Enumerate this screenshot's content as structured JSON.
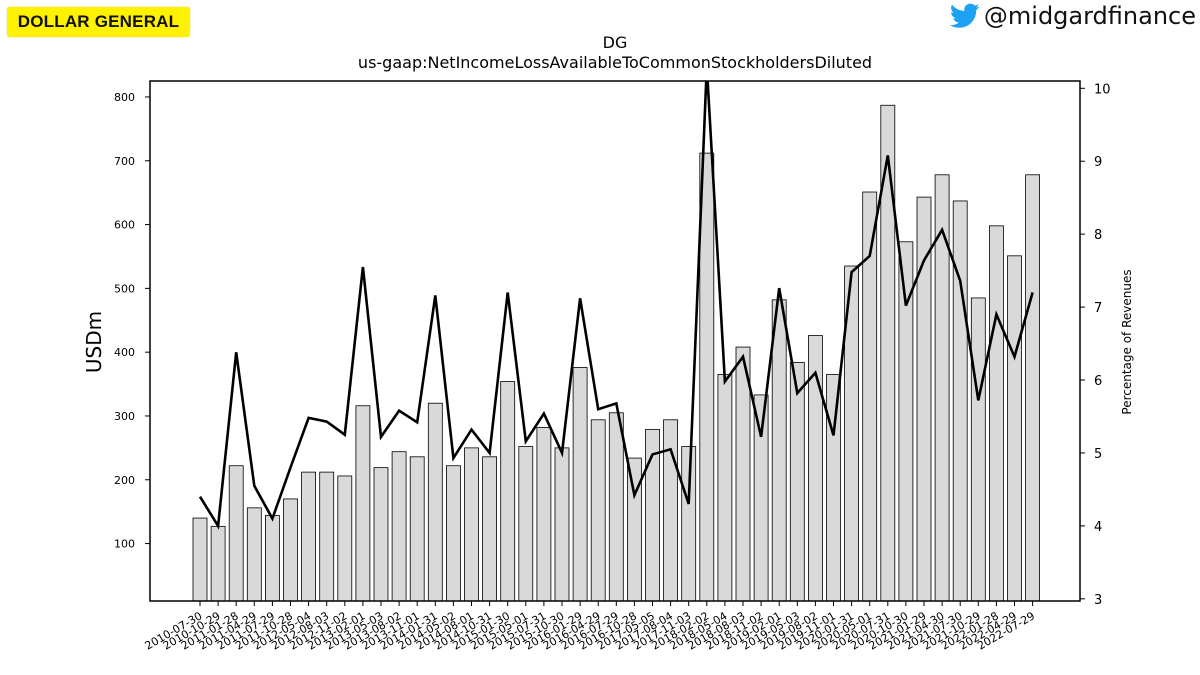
{
  "brand": {
    "logo_text": "DOLLAR GENERAL",
    "logo_color": "#fff200"
  },
  "social": {
    "icon": "twitter-bird-icon",
    "handle": "@midgardfinance",
    "icon_color": "#1da1f2"
  },
  "chart_data": {
    "type": "bar",
    "title": "DG",
    "subtitle": "us-gaap:NetIncomeLossAvailableToCommonStockholdersDiluted",
    "ylabel": "USDm",
    "ylabel_right": "Percentage of Revenues",
    "ylim": [
      10,
      825
    ],
    "ylim_right": [
      2.97,
      10.1
    ],
    "yticks": [
      100,
      200,
      300,
      400,
      500,
      600,
      700,
      800
    ],
    "yticks_right": [
      3,
      4,
      5,
      6,
      7,
      8,
      9,
      10
    ],
    "categories": [
      "2010-07-30",
      "2010-10-29",
      "2011-01-28",
      "2011-04-29",
      "2011-07-29",
      "2011-10-28",
      "2012-05-04",
      "2012-08-03",
      "2012-11-02",
      "2013-02-01",
      "2013-05-03",
      "2013-08-02",
      "2013-11-01",
      "2014-01-31",
      "2014-05-02",
      "2014-08-01",
      "2014-10-31",
      "2015-01-30",
      "2015-05-01",
      "2015-07-31",
      "2015-10-30",
      "2016-01-29",
      "2016-04-29",
      "2016-07-29",
      "2016-10-28",
      "2017-05-05",
      "2017-08-04",
      "2017-11-03",
      "2018-02-02",
      "2018-05-04",
      "2018-08-03",
      "2018-11-02",
      "2019-02-01",
      "2019-05-03",
      "2019-08-02",
      "2019-11-01",
      "2020-01-31",
      "2020-05-01",
      "2020-07-31",
      "2020-10-30",
      "2021-01-29",
      "2021-04-30",
      "2021-07-30",
      "2021-10-29",
      "2022-01-28",
      "2022-04-29",
      "2022-07-29"
    ],
    "series": [
      {
        "axis": "left",
        "kind": "bar",
        "values": [
          140,
          127,
          222,
          156,
          144,
          170,
          212,
          212,
          206,
          316,
          219,
          244,
          236,
          320,
          222,
          250,
          236,
          354,
          252,
          282,
          250,
          376,
          294,
          305,
          234,
          279,
          294,
          252,
          712,
          365,
          408,
          333,
          482,
          384,
          426,
          365,
          535,
          651,
          787,
          573,
          643,
          678,
          637,
          485,
          598,
          551,
          678
        ],
        "color": "#d9d9d9"
      },
      {
        "axis": "right",
        "kind": "line",
        "values": [
          4.4,
          4.0,
          6.38,
          4.55,
          4.1,
          4.8,
          5.48,
          5.43,
          5.25,
          7.55,
          5.22,
          5.58,
          5.42,
          7.16,
          4.93,
          5.32,
          5.0,
          7.2,
          5.16,
          5.54,
          5.0,
          7.12,
          5.6,
          5.68,
          4.42,
          4.98,
          5.05,
          4.3,
          10.3,
          5.98,
          6.32,
          5.22,
          7.26,
          5.82,
          6.1,
          5.24,
          7.48,
          7.7,
          9.08,
          7.02,
          7.64,
          8.06,
          7.36,
          5.72,
          6.9,
          6.32,
          7.2
        ],
        "color": "#000000"
      }
    ],
    "grid": false,
    "legend": "none"
  }
}
